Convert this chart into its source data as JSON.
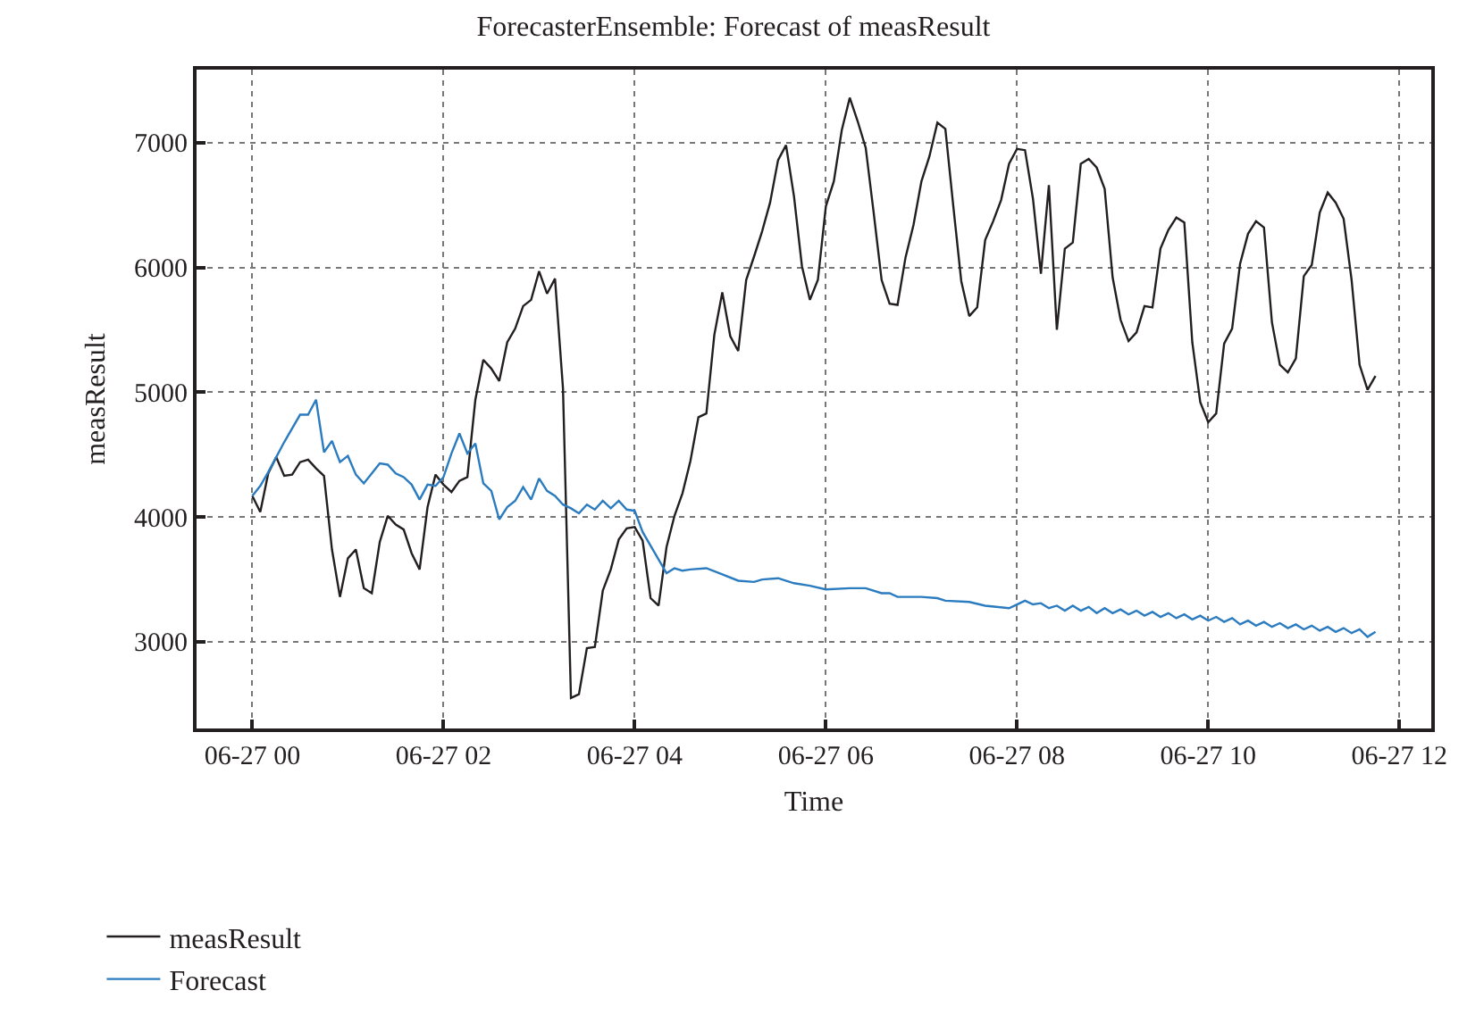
{
  "chart_data": {
    "type": "line",
    "title": "ForecasterEnsemble: Forecast of measResult",
    "xlabel": "Time",
    "ylabel": "measResult",
    "xlim": [
      "--06-26T23:25",
      "--06-27T12:20"
    ],
    "ylim": [
      2306,
      7585
    ],
    "xticks": [
      {
        "value": "--06-27T00:00",
        "label": "06-27 00"
      },
      {
        "value": "--06-27T02:00",
        "label": "06-27 02"
      },
      {
        "value": "--06-27T04:00",
        "label": "06-27 04"
      },
      {
        "value": "--06-27T06:00",
        "label": "06-27 06"
      },
      {
        "value": "--06-27T08:00",
        "label": "06-27 08"
      },
      {
        "value": "--06-27T10:00",
        "label": "06-27 10"
      },
      {
        "value": "--06-27T12:00",
        "label": "06-27 12"
      }
    ],
    "yticks": [
      3000,
      4000,
      5000,
      6000,
      7000
    ],
    "grid": true,
    "legend": "bottom left",
    "marker": "none",
    "line_style": "solid",
    "series": [
      {
        "name": "measResult",
        "color": "#231f20",
        "x": [
          "--06-27T00:00",
          "--06-27T00:05",
          "--06-27T00:10",
          "--06-27T00:15",
          "--06-27T00:20",
          "--06-27T00:25",
          "--06-27T00:30",
          "--06-27T00:35",
          "--06-27T00:40",
          "--06-27T00:45",
          "--06-27T00:50",
          "--06-27T00:55",
          "--06-27T01:00",
          "--06-27T01:05",
          "--06-27T01:10",
          "--06-27T01:15",
          "--06-27T01:20",
          "--06-27T01:25",
          "--06-27T01:30",
          "--06-27T01:35",
          "--06-27T01:40",
          "--06-27T01:45",
          "--06-27T01:50",
          "--06-27T01:55",
          "--06-27T02:00",
          "--06-27T02:05",
          "--06-27T02:10",
          "--06-27T02:15",
          "--06-27T02:20",
          "--06-27T02:25",
          "--06-27T02:30",
          "--06-27T02:35",
          "--06-27T02:40",
          "--06-27T02:45",
          "--06-27T02:50",
          "--06-27T02:55",
          "--06-27T03:00",
          "--06-27T03:05",
          "--06-27T03:10",
          "--06-27T03:15",
          "--06-27T03:20",
          "--06-27T03:25",
          "--06-27T03:30",
          "--06-27T03:35",
          "--06-27T03:40",
          "--06-27T03:45",
          "--06-27T03:50",
          "--06-27T03:55",
          "--06-27T04:00",
          "--06-27T04:05",
          "--06-27T04:10",
          "--06-27T04:15",
          "--06-27T04:20",
          "--06-27T04:25",
          "--06-27T04:30",
          "--06-27T04:35",
          "--06-27T04:40",
          "--06-27T04:45",
          "--06-27T04:50",
          "--06-27T04:55",
          "--06-27T05:00",
          "--06-27T05:05",
          "--06-27T05:10",
          "--06-27T05:15",
          "--06-27T05:20",
          "--06-27T05:25",
          "--06-27T05:30",
          "--06-27T05:35",
          "--06-27T05:40",
          "--06-27T05:45",
          "--06-27T05:50",
          "--06-27T05:55",
          "--06-27T06:00",
          "--06-27T06:05",
          "--06-27T06:10",
          "--06-27T06:15",
          "--06-27T06:20",
          "--06-27T06:25",
          "--06-27T06:30",
          "--06-27T06:35",
          "--06-27T06:40",
          "--06-27T06:45",
          "--06-27T06:50",
          "--06-27T06:55",
          "--06-27T07:00",
          "--06-27T07:05",
          "--06-27T07:10",
          "--06-27T07:15",
          "--06-27T07:20",
          "--06-27T07:25",
          "--06-27T07:30",
          "--06-27T07:35",
          "--06-27T07:40",
          "--06-27T07:45",
          "--06-27T07:50",
          "--06-27T07:55",
          "--06-27T08:00",
          "--06-27T08:05",
          "--06-27T08:10",
          "--06-27T08:15",
          "--06-27T08:20",
          "--06-27T08:25",
          "--06-27T08:30",
          "--06-27T08:35",
          "--06-27T08:40",
          "--06-27T08:45",
          "--06-27T08:50",
          "--06-27T08:55",
          "--06-27T09:00",
          "--06-27T09:05",
          "--06-27T09:10",
          "--06-27T09:15",
          "--06-27T09:20",
          "--06-27T09:25",
          "--06-27T09:30",
          "--06-27T09:35",
          "--06-27T09:40",
          "--06-27T09:45",
          "--06-27T09:50",
          "--06-27T09:55",
          "--06-27T10:00",
          "--06-27T10:05",
          "--06-27T10:10",
          "--06-27T10:15",
          "--06-27T10:20",
          "--06-27T10:25",
          "--06-27T10:30",
          "--06-27T10:35",
          "--06-27T10:40",
          "--06-27T10:45",
          "--06-27T10:50",
          "--06-27T10:55",
          "--06-27T11:00",
          "--06-27T11:05",
          "--06-27T11:10",
          "--06-27T11:15",
          "--06-27T11:20",
          "--06-27T11:25",
          "--06-27T11:30",
          "--06-27T11:35",
          "--06-27T11:40",
          "--06-27T11:45"
        ],
        "values": [
          4170,
          4040,
          4350,
          4480,
          4330,
          4340,
          4440,
          4460,
          4390,
          4330,
          3740,
          3360,
          3670,
          3740,
          3430,
          3390,
          3800,
          4010,
          3940,
          3900,
          3710,
          3580,
          4080,
          4340,
          4260,
          4200,
          4290,
          4320,
          4940,
          5260,
          5190,
          5090,
          5400,
          5510,
          5690,
          5740,
          5970,
          5790,
          5910,
          5030,
          2550,
          2580,
          2950,
          2960,
          3410,
          3580,
          3820,
          3910,
          3920,
          3810,
          3350,
          3290,
          3760,
          4010,
          4190,
          4450,
          4800,
          4830,
          5460,
          5800,
          5450,
          5330,
          5900,
          6090,
          6290,
          6520,
          6860,
          6980,
          6570,
          6010,
          5740,
          5900,
          6490,
          6690,
          7100,
          7360,
          7170,
          6960,
          6440,
          5900,
          5710,
          5700,
          6080,
          6340,
          6690,
          6890,
          7160,
          7110,
          6490,
          5890,
          5610,
          5680,
          6220,
          6370,
          6540,
          6830,
          6950,
          6940,
          6550,
          5950,
          6660,
          5500,
          6150,
          6200,
          6830,
          6870,
          6800,
          6630,
          5920,
          5580,
          5410,
          5480,
          5690,
          5680,
          6150,
          6300,
          6400,
          6360,
          5400,
          4920,
          4760,
          4830,
          5390,
          5510,
          6030,
          6270,
          6370,
          6320,
          5560,
          5220,
          5160,
          5270,
          5930,
          6020,
          6440,
          6600,
          6520,
          6390,
          5900,
          5220,
          5020,
          5130
        ]
      },
      {
        "name": "Forecast",
        "color": "#2a7bbf",
        "x": [
          "--06-27T00:00",
          "--06-27T00:05",
          "--06-27T00:10",
          "--06-27T00:15",
          "--06-27T00:20",
          "--06-27T00:25",
          "--06-27T00:30",
          "--06-27T00:35",
          "--06-27T00:40",
          "--06-27T00:45",
          "--06-27T00:50",
          "--06-27T00:55",
          "--06-27T01:00",
          "--06-27T01:05",
          "--06-27T01:10",
          "--06-27T01:15",
          "--06-27T01:20",
          "--06-27T01:25",
          "--06-27T01:30",
          "--06-27T01:35",
          "--06-27T01:40",
          "--06-27T01:45",
          "--06-27T01:50",
          "--06-27T01:55",
          "--06-27T02:00",
          "--06-27T02:05",
          "--06-27T02:10",
          "--06-27T02:15",
          "--06-27T02:20",
          "--06-27T02:25",
          "--06-27T02:30",
          "--06-27T02:35",
          "--06-27T02:40",
          "--06-27T02:45",
          "--06-27T02:50",
          "--06-27T02:55",
          "--06-27T03:00",
          "--06-27T03:05",
          "--06-27T03:10",
          "--06-27T03:15",
          "--06-27T03:20",
          "--06-27T03:25",
          "--06-27T03:30",
          "--06-27T03:35",
          "--06-27T03:40",
          "--06-27T03:45",
          "--06-27T03:50",
          "--06-27T03:55",
          "--06-27T04:00",
          "--06-27T04:05",
          "--06-27T04:20",
          "--06-27T04:25",
          "--06-27T04:30",
          "--06-27T04:35",
          "--06-27T04:45",
          "--06-27T04:55",
          "--06-27T05:05",
          "--06-27T05:15",
          "--06-27T05:20",
          "--06-27T05:30",
          "--06-27T05:40",
          "--06-27T05:50",
          "--06-27T06:00",
          "--06-27T06:15",
          "--06-27T06:25",
          "--06-27T06:35",
          "--06-27T06:40",
          "--06-27T06:45",
          "--06-27T07:00",
          "--06-27T07:10",
          "--06-27T07:15",
          "--06-27T07:30",
          "--06-27T07:40",
          "--06-27T07:55",
          "--06-27T08:00",
          "--06-27T08:05",
          "--06-27T08:10",
          "--06-27T08:15",
          "--06-27T08:20",
          "--06-27T08:25",
          "--06-27T08:30",
          "--06-27T08:35",
          "--06-27T08:40",
          "--06-27T08:45",
          "--06-27T08:50",
          "--06-27T08:55",
          "--06-27T09:00",
          "--06-27T09:05",
          "--06-27T09:10",
          "--06-27T09:15",
          "--06-27T09:20",
          "--06-27T09:25",
          "--06-27T09:30",
          "--06-27T09:35",
          "--06-27T09:40",
          "--06-27T09:45",
          "--06-27T09:50",
          "--06-27T09:55",
          "--06-27T10:00",
          "--06-27T10:05",
          "--06-27T10:10",
          "--06-27T10:15",
          "--06-27T10:20",
          "--06-27T10:25",
          "--06-27T10:30",
          "--06-27T10:35",
          "--06-27T10:40",
          "--06-27T10:45",
          "--06-27T10:50",
          "--06-27T10:55",
          "--06-27T11:00",
          "--06-27T11:05",
          "--06-27T11:10",
          "--06-27T11:15",
          "--06-27T11:20",
          "--06-27T11:25",
          "--06-27T11:30",
          "--06-27T11:35",
          "--06-27T11:40",
          "--06-27T11:45"
        ],
        "values": [
          4170,
          4250,
          4360,
          4480,
          4600,
          4710,
          4820,
          4820,
          4940,
          4520,
          4610,
          4440,
          4490,
          4340,
          4270,
          4350,
          4430,
          4420,
          4350,
          4320,
          4260,
          4140,
          4260,
          4250,
          4320,
          4510,
          4670,
          4510,
          4590,
          4270,
          4210,
          3980,
          4080,
          4130,
          4240,
          4140,
          4310,
          4210,
          4170,
          4100,
          4070,
          4030,
          4100,
          4060,
          4130,
          4070,
          4130,
          4060,
          4050,
          3880,
          3550,
          3590,
          3570,
          3580,
          3590,
          3540,
          3490,
          3480,
          3500,
          3510,
          3470,
          3450,
          3420,
          3430,
          3430,
          3390,
          3390,
          3360,
          3360,
          3350,
          3330,
          3320,
          3290,
          3270,
          3300,
          3330,
          3300,
          3310,
          3270,
          3290,
          3250,
          3290,
          3250,
          3280,
          3230,
          3270,
          3230,
          3260,
          3220,
          3250,
          3210,
          3240,
          3200,
          3230,
          3190,
          3220,
          3180,
          3210,
          3170,
          3200,
          3160,
          3190,
          3140,
          3170,
          3130,
          3160,
          3120,
          3150,
          3110,
          3140,
          3100,
          3130,
          3090,
          3120,
          3080,
          3110,
          3070,
          3100,
          3040,
          3080
        ]
      }
    ]
  }
}
